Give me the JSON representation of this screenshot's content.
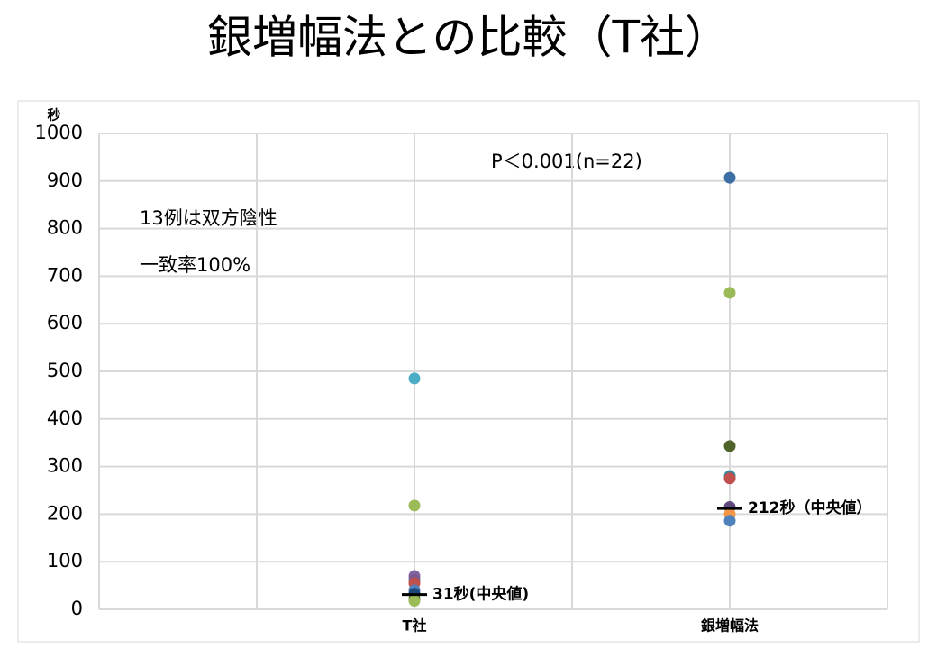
{
  "chart_data": {
    "type": "dotplot",
    "title": "銀増幅法との比較（T社）",
    "y_label": "秒",
    "categories": [
      "T社",
      "銀増幅法"
    ],
    "groups": [
      {
        "values": [
          485,
          218,
          70,
          62,
          55,
          40,
          33,
          22,
          18
        ],
        "colors": [
          "#4bacc6",
          "#9bbb59",
          "#8064a2",
          "#7b5a8e",
          "#c0504d",
          "#4f81bd",
          "#1f497d",
          "#4f6228",
          "#9bbb59"
        ]
      },
      {
        "values": [
          907,
          665,
          343,
          280,
          275,
          215,
          200,
          186
        ],
        "colors": [
          "#3a6ea5",
          "#9bbb59",
          "#4f6228",
          "#31859c",
          "#c0504d",
          "#604a7b",
          "#f79646",
          "#4f81bd"
        ]
      }
    ],
    "medians": [
      31,
      212
    ],
    "median_labels": [
      "31秒(中央値)",
      "212秒（中央値）"
    ],
    "annotations": [
      "P＜0.001(n=22)",
      "13例は双方陰性",
      "一致率100%"
    ],
    "ylim": [
      0,
      1000
    ],
    "yticks": [
      0,
      100,
      200,
      300,
      400,
      500,
      600,
      700,
      800,
      900,
      1000
    ],
    "grid": true
  }
}
